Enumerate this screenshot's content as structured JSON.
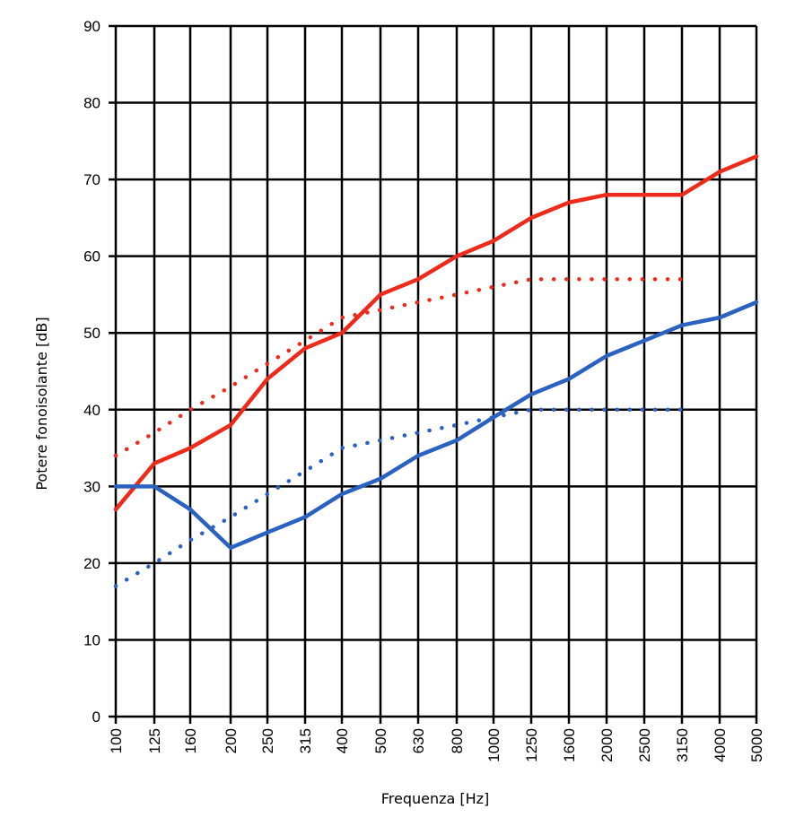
{
  "chart_data": {
    "type": "line",
    "xlabel": "Frequenza [Hz]",
    "ylabel": "Potere fonoisolante [dB]",
    "categories": [
      "100",
      "125",
      "160",
      "200",
      "250",
      "315",
      "400",
      "500",
      "630",
      "800",
      "1000",
      "1250",
      "1600",
      "2000",
      "2500",
      "3150",
      "4000",
      "5000"
    ],
    "ylim": [
      0,
      90
    ],
    "yticks": [
      0,
      10,
      20,
      30,
      40,
      50,
      60,
      70,
      80,
      90
    ],
    "grid": true,
    "series": [
      {
        "color": "#ee2a1b",
        "style": "solid",
        "values": [
          27,
          33,
          35,
          38,
          44,
          48,
          50,
          55,
          57,
          60,
          62,
          65,
          67,
          68,
          68,
          68,
          71,
          73
        ]
      },
      {
        "color": "#ee2a1b",
        "style": "dotted",
        "values": [
          34,
          37,
          40,
          43,
          46,
          49,
          52,
          53,
          54,
          55,
          56,
          57,
          57,
          57,
          57,
          57,
          null,
          null
        ]
      },
      {
        "color": "#2a62bf",
        "style": "solid",
        "values": [
          30,
          30,
          27,
          22,
          24,
          26,
          29,
          31,
          34,
          36,
          39,
          42,
          44,
          47,
          49,
          51,
          52,
          54
        ]
      },
      {
        "color": "#2a62bf",
        "style": "dotted",
        "values": [
          17,
          20,
          23,
          26,
          29,
          32,
          35,
          36,
          37,
          38,
          39,
          40,
          40,
          40,
          40,
          40,
          null,
          null
        ]
      }
    ]
  }
}
